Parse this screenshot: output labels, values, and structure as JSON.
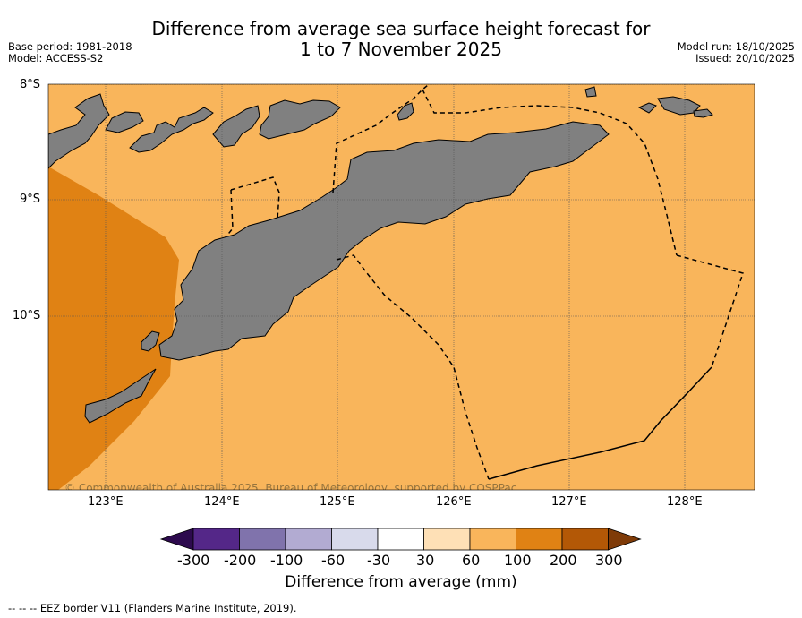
{
  "title": {
    "line1": "Difference from average sea surface height forecast for",
    "line2": "1 to 7 November 2025"
  },
  "meta": {
    "base_period": "Base period: 1981-2018",
    "model": "Model: ACCESS-S2",
    "model_run": "Model run: 18/10/2025",
    "issued": "Issued: 20/10/2025"
  },
  "axes": {
    "lat_labels": [
      "8°S",
      "9°S",
      "10°S"
    ],
    "lon_labels": [
      "123°E",
      "124°E",
      "125°E",
      "126°E",
      "127°E",
      "128°E"
    ]
  },
  "colorbar": {
    "ticks": [
      "-300",
      "-200",
      "-100",
      "-60",
      "-30",
      "30",
      "60",
      "100",
      "200",
      "300"
    ],
    "colors": [
      "#2d0a4e",
      "#542788",
      "#8073ac",
      "#b2abd2",
      "#d8daeb",
      "#ffffff",
      "#fee0b6",
      "#f9b55b",
      "#e08214",
      "#b35806",
      "#7f3b08"
    ],
    "label": "Difference from average (mm)"
  },
  "map_colors": {
    "sea_main": "#f9b55b",
    "sea_high": "#e08214",
    "land": "#808080"
  },
  "copyright": "© Commonwealth of Australia 2025, Bureau of Meteorology, supported by COSPPac",
  "legend": "--  --  -- EEZ border V11 (Flanders Marine Institute, 2019)."
}
